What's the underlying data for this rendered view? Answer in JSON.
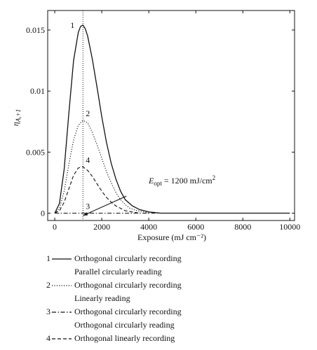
{
  "chart_data": {
    "type": "line",
    "title": "",
    "xlabel": "Exposure (mJ cm⁻²)",
    "ylabel": "ηA,+1",
    "ylabel_main": "η",
    "ylabel_sub": "A,+1",
    "xlim": [
      -300,
      10200
    ],
    "ylim": [
      -0.0006,
      0.0166
    ],
    "x_ticks": [
      0,
      2000,
      4000,
      6000,
      8000,
      10000
    ],
    "y_ticks": [
      0,
      0.005,
      0.01,
      0.015
    ],
    "y_tick_labels": [
      "0",
      "0.005",
      "0.01",
      "0.015"
    ],
    "grid": false,
    "legend_position": "below",
    "series": [
      {
        "name": "1",
        "legend_lines": [
          "Orthogonal circularly recording",
          "Parallel circularly reading"
        ],
        "style": "solid",
        "x": [
          0,
          200,
          400,
          600,
          800,
          1000,
          1100,
          1200,
          1300,
          1400,
          1600,
          1800,
          2000,
          2200,
          2400,
          2600,
          2800,
          3000,
          3300,
          3600,
          4000,
          4500,
          5000,
          6000,
          8000,
          10000
        ],
        "y": [
          0,
          0.0008,
          0.0036,
          0.0082,
          0.0125,
          0.0148,
          0.0153,
          0.0154,
          0.0151,
          0.0145,
          0.0126,
          0.0103,
          0.0079,
          0.0058,
          0.0041,
          0.0028,
          0.0018,
          0.0011,
          0.0006,
          0.0003,
          0.0001,
          0.0,
          0,
          0,
          0,
          0
        ]
      },
      {
        "name": "2",
        "legend_lines": [
          "Orthogonal circularly recording",
          "Linearly reading"
        ],
        "style": "dotted",
        "x": [
          0,
          200,
          400,
          600,
          800,
          1000,
          1200,
          1400,
          1600,
          1800,
          2000,
          2200,
          2400,
          2600,
          2800,
          3000,
          3200,
          3500,
          3800,
          4000
        ],
        "y": [
          0,
          0.0004,
          0.0018,
          0.004,
          0.006,
          0.0072,
          0.0076,
          0.0074,
          0.0066,
          0.0056,
          0.0045,
          0.0034,
          0.0025,
          0.0017,
          0.0011,
          0.0007,
          0.0004,
          0.0002,
          0.0001,
          0
        ]
      },
      {
        "name": "3",
        "legend_lines": [
          "Orthogonal circularly recording",
          "Orthogonal circularly reading"
        ],
        "style": "dashdot",
        "x": [
          0,
          2000,
          4000,
          6000,
          8000,
          10000
        ],
        "y": [
          0,
          0,
          0,
          0,
          0,
          0
        ]
      },
      {
        "name": "4",
        "legend_lines": [
          "Orthogonal linearly recording"
        ],
        "style": "dashed",
        "x": [
          0,
          200,
          400,
          600,
          800,
          1000,
          1200,
          1400,
          1600,
          1800,
          2000,
          2200,
          2400,
          2600,
          2800,
          3000,
          3300,
          3600
        ],
        "y": [
          0,
          0.0002,
          0.0009,
          0.002,
          0.0031,
          0.0037,
          0.0038,
          0.0035,
          0.003,
          0.0024,
          0.0018,
          0.0013,
          0.0009,
          0.0006,
          0.0004,
          0.0002,
          0.0001,
          0
        ]
      }
    ],
    "vertical_reference": {
      "x": 1200,
      "style": "dotted"
    },
    "annotation": {
      "text": "Eopt = 1200 mJ/cm2",
      "prefix": "E",
      "sub": "opt",
      "middle": " = 1200 mJ/cm",
      "sup": "2",
      "arrow_from": [
        3050,
        0.0014
      ],
      "arrow_to": [
        1200,
        -0.0002
      ]
    }
  }
}
